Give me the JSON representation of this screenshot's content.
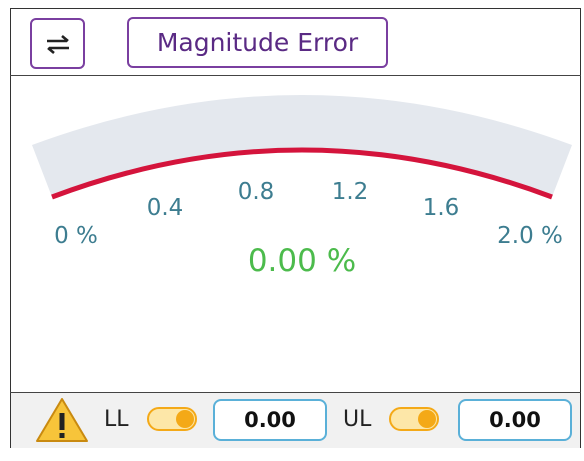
{
  "header": {
    "title": "Magnitude Error"
  },
  "gauge": {
    "tick_labels": [
      "0 %",
      "0.4",
      "0.8",
      "1.2",
      "1.6",
      "2.0 %"
    ],
    "value": "0.00 %"
  },
  "footer": {
    "lower_limit": {
      "label": "LL",
      "value": "0.00"
    },
    "upper_limit": {
      "label": "UL",
      "value": "0.00"
    }
  }
}
